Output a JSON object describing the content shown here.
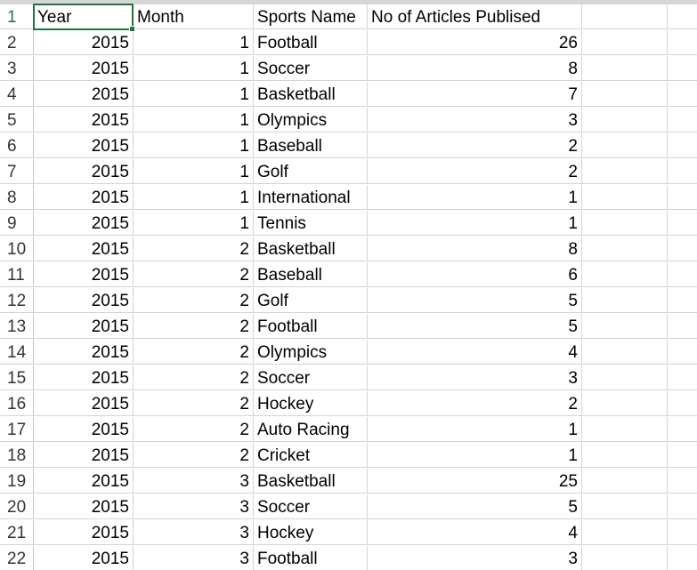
{
  "columns": {
    "a": "Year",
    "b": "Month",
    "c": "Sports Name",
    "d": "No of Articles Publised"
  },
  "rows": [
    {
      "n": "2",
      "year": "2015",
      "month": "1",
      "sport": "Football",
      "count": "26"
    },
    {
      "n": "3",
      "year": "2015",
      "month": "1",
      "sport": "Soccer",
      "count": "8"
    },
    {
      "n": "4",
      "year": "2015",
      "month": "1",
      "sport": "Basketball",
      "count": "7"
    },
    {
      "n": "5",
      "year": "2015",
      "month": "1",
      "sport": "Olympics",
      "count": "3"
    },
    {
      "n": "6",
      "year": "2015",
      "month": "1",
      "sport": "Baseball",
      "count": "2"
    },
    {
      "n": "7",
      "year": "2015",
      "month": "1",
      "sport": "Golf",
      "count": "2"
    },
    {
      "n": "8",
      "year": "2015",
      "month": "1",
      "sport": "International",
      "count": "1"
    },
    {
      "n": "9",
      "year": "2015",
      "month": "1",
      "sport": "Tennis",
      "count": "1"
    },
    {
      "n": "10",
      "year": "2015",
      "month": "2",
      "sport": "Basketball",
      "count": "8"
    },
    {
      "n": "11",
      "year": "2015",
      "month": "2",
      "sport": "Baseball",
      "count": "6"
    },
    {
      "n": "12",
      "year": "2015",
      "month": "2",
      "sport": "Golf",
      "count": "5"
    },
    {
      "n": "13",
      "year": "2015",
      "month": "2",
      "sport": "Football",
      "count": "5"
    },
    {
      "n": "14",
      "year": "2015",
      "month": "2",
      "sport": "Olympics",
      "count": "4"
    },
    {
      "n": "15",
      "year": "2015",
      "month": "2",
      "sport": "Soccer",
      "count": "3"
    },
    {
      "n": "16",
      "year": "2015",
      "month": "2",
      "sport": "Hockey",
      "count": "2"
    },
    {
      "n": "17",
      "year": "2015",
      "month": "2",
      "sport": "Auto Racing",
      "count": "1"
    },
    {
      "n": "18",
      "year": "2015",
      "month": "2",
      "sport": "Cricket",
      "count": "1"
    },
    {
      "n": "19",
      "year": "2015",
      "month": "3",
      "sport": "Basketball",
      "count": "25"
    },
    {
      "n": "20",
      "year": "2015",
      "month": "3",
      "sport": "Soccer",
      "count": "5"
    },
    {
      "n": "21",
      "year": "2015",
      "month": "3",
      "sport": "Hockey",
      "count": "4"
    },
    {
      "n": "22",
      "year": "2015",
      "month": "3",
      "sport": "Football",
      "count": "3"
    }
  ],
  "header_row_number": "1",
  "colors": {
    "selection": "#217346",
    "gridline": "#d4d4d4"
  }
}
